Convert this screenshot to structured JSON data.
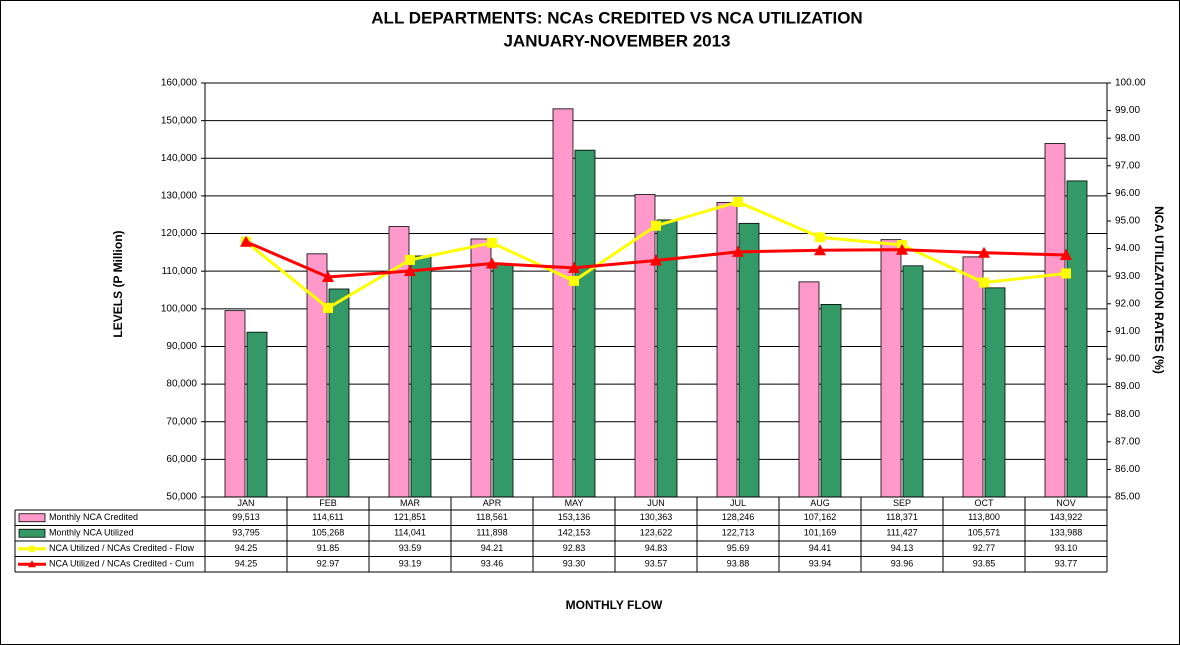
{
  "chart_data": {
    "type": "bar",
    "title": "ALL DEPARTMENTS: NCAs CREDITED VS NCA UTILIZATION",
    "subtitle": "JANUARY-NOVEMBER 2013",
    "x_label": "MONTHLY FLOW",
    "y_label": "LEVELS (P Million)",
    "y2_label": "NCA UTILIZATION RATES (%)",
    "categories": [
      "JAN",
      "FEB",
      "MAR",
      "APR",
      "MAY",
      "JUN",
      "JUL",
      "AUG",
      "SEP",
      "OCT",
      "NOV"
    ],
    "series": [
      {
        "name": "Monthly NCA Credited",
        "type": "bar",
        "color": "#FF99CC",
        "values": [
          99513,
          114611,
          121851,
          118561,
          153136,
          130363,
          128246,
          107162,
          118371,
          113800,
          143922
        ],
        "value_labels": [
          "99,513",
          "114,611",
          "121,851",
          "118,561",
          "153,136",
          "130,363",
          "128,246",
          "107,162",
          "118,371",
          "113,800",
          "143,922"
        ]
      },
      {
        "name": "Monthly NCA Utilized",
        "type": "bar",
        "color": "#339966",
        "values": [
          93795,
          105268,
          114041,
          111898,
          142153,
          123622,
          122713,
          101169,
          111427,
          105571,
          133988
        ],
        "value_labels": [
          "93,795",
          "105,268",
          "114,041",
          "111,898",
          "142,153",
          "123,622",
          "122,713",
          "101,169",
          "111,427",
          "105,571",
          "133,988"
        ]
      },
      {
        "name": "NCA Utilized / NCAs Credited - Flow",
        "type": "line",
        "axis": "y2",
        "color": "#FFFF00",
        "marker": "square",
        "values": [
          94.25,
          91.85,
          93.59,
          94.21,
          92.83,
          94.83,
          95.69,
          94.41,
          94.13,
          92.77,
          93.1
        ],
        "value_labels": [
          "94.25",
          "91.85",
          "93.59",
          "94.21",
          "92.83",
          "94.83",
          "95.69",
          "94.41",
          "94.13",
          "92.77",
          "93.10"
        ]
      },
      {
        "name": "NCA Utilized / NCAs Credited - Cum",
        "type": "line",
        "axis": "y2",
        "color": "#FF0000",
        "marker": "triangle",
        "values": [
          94.25,
          92.97,
          93.19,
          93.46,
          93.3,
          93.57,
          93.88,
          93.94,
          93.96,
          93.85,
          93.77
        ],
        "value_labels": [
          "94.25",
          "92.97",
          "93.19",
          "93.46",
          "93.30",
          "93.57",
          "93.88",
          "93.94",
          "93.96",
          "93.85",
          "93.77"
        ]
      }
    ],
    "ylim": [
      50000,
      160000
    ],
    "yticks": [
      {
        "value": 50000,
        "label": "50,000"
      },
      {
        "value": 60000,
        "label": "60,000"
      },
      {
        "value": 70000,
        "label": "70,000"
      },
      {
        "value": 80000,
        "label": "80,000"
      },
      {
        "value": 90000,
        "label": "90,000"
      },
      {
        "value": 100000,
        "label": "100,000"
      },
      {
        "value": 110000,
        "label": "110,000"
      },
      {
        "value": 120000,
        "label": "120,000"
      },
      {
        "value": 130000,
        "label": "130,000"
      },
      {
        "value": 140000,
        "label": "140,000"
      },
      {
        "value": 150000,
        "label": "150,000"
      },
      {
        "value": 160000,
        "label": "160,000"
      }
    ],
    "y2lim": [
      85,
      100
    ],
    "y2ticks": [
      {
        "value": 85,
        "label": "85.00"
      },
      {
        "value": 86,
        "label": "86.00"
      },
      {
        "value": 87,
        "label": "87.00"
      },
      {
        "value": 88,
        "label": "88.00"
      },
      {
        "value": 89,
        "label": "89.00"
      },
      {
        "value": 90,
        "label": "90.00"
      },
      {
        "value": 91,
        "label": "91.00"
      },
      {
        "value": 92,
        "label": "92.00"
      },
      {
        "value": 93,
        "label": "93.00"
      },
      {
        "value": 94,
        "label": "94.00"
      },
      {
        "value": 95,
        "label": "95.00"
      },
      {
        "value": 96,
        "label": "96.00"
      },
      {
        "value": 97,
        "label": "97.00"
      },
      {
        "value": 98,
        "label": "98.00"
      },
      {
        "value": 99,
        "label": "99.00"
      },
      {
        "value": 100,
        "label": "100.00"
      }
    ],
    "grid": true
  }
}
